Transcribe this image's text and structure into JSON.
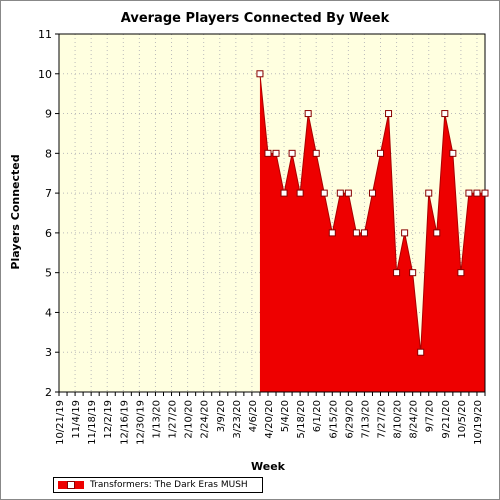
{
  "chart_data": {
    "type": "area",
    "title": "Average Players Connected By Week",
    "xlabel": "Week",
    "ylabel": "Players Connected",
    "ylim": [
      2,
      11
    ],
    "yticks": [
      2,
      3,
      4,
      5,
      6,
      7,
      8,
      9,
      10,
      11
    ],
    "grid": true,
    "legend_position": "bottom-left",
    "colors": {
      "plot_background": "#ffffe0",
      "area_fill": "#ee0000",
      "area_stroke": "#aa0000",
      "marker_fill": "#ffffff",
      "grid": "#bbbbbb"
    },
    "x_tick_labels": [
      "10/21/19",
      "11/4/19",
      "11/18/19",
      "12/2/19",
      "12/16/19",
      "12/30/19",
      "1/13/20",
      "1/27/20",
      "2/10/20",
      "2/24/20",
      "3/9/20",
      "3/23/20",
      "4/6/20",
      "4/20/20",
      "5/4/20",
      "5/18/20",
      "6/1/20",
      "6/15/20",
      "6/29/20",
      "7/13/20",
      "7/27/20",
      "8/10/20",
      "8/24/20",
      "9/7/20",
      "9/21/20",
      "10/5/20",
      "10/19/20"
    ],
    "weeks": [
      "10/21/19",
      "10/28/19",
      "11/4/19",
      "11/11/19",
      "11/18/19",
      "11/25/19",
      "12/2/19",
      "12/9/19",
      "12/16/19",
      "12/23/19",
      "12/30/19",
      "1/6/20",
      "1/13/20",
      "1/20/20",
      "1/27/20",
      "2/3/20",
      "2/10/20",
      "2/17/20",
      "2/24/20",
      "3/2/20",
      "3/9/20",
      "3/16/20",
      "3/23/20",
      "3/30/20",
      "4/6/20",
      "4/13/20",
      "4/20/20",
      "4/27/20",
      "5/4/20",
      "5/11/20",
      "5/18/20",
      "5/25/20",
      "6/1/20",
      "6/8/20",
      "6/15/20",
      "6/22/20",
      "6/29/20",
      "7/6/20",
      "7/13/20",
      "7/20/20",
      "7/27/20",
      "8/3/20",
      "8/10/20",
      "8/17/20",
      "8/24/20",
      "8/31/20",
      "9/7/20",
      "9/14/20",
      "9/21/20",
      "9/28/20",
      "10/5/20",
      "10/12/20",
      "10/19/20",
      "10/26/20"
    ],
    "series": [
      {
        "name": "Transformers: The Dark Eras MUSH",
        "values": [
          null,
          null,
          null,
          null,
          null,
          null,
          null,
          null,
          null,
          null,
          null,
          null,
          null,
          null,
          null,
          null,
          null,
          null,
          null,
          null,
          null,
          null,
          null,
          null,
          null,
          10,
          8,
          8,
          7,
          8,
          7,
          9,
          8,
          7,
          6,
          7,
          7,
          6,
          6,
          7,
          8,
          9,
          5,
          6,
          5,
          3,
          7,
          6,
          9,
          8,
          5,
          7,
          7,
          7
        ]
      }
    ]
  }
}
